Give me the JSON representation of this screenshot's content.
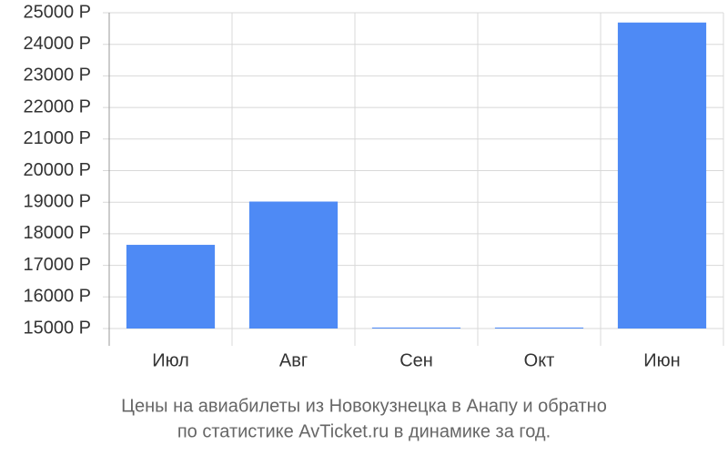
{
  "chart_data": {
    "type": "bar",
    "title": [
      "Цены на авиабилеты из Новокузнецка в Анапу и обратно",
      "по статистике AvTicket.ru в динамике за год."
    ],
    "categories": [
      "Июл",
      "Авг",
      "Сен",
      "Окт",
      "Июн"
    ],
    "values": [
      17650,
      19020,
      15030,
      15030,
      24690
    ],
    "color": "#4e8af5",
    "ylim": [
      15000,
      25000
    ],
    "yticks": [
      {
        "value": 15000,
        "label": "15000 Р"
      },
      {
        "value": 16000,
        "label": "16000 Р"
      },
      {
        "value": 17000,
        "label": "17000 Р"
      },
      {
        "value": 18000,
        "label": "18000 Р"
      },
      {
        "value": 19000,
        "label": "19000 Р"
      },
      {
        "value": 20000,
        "label": "20000 Р"
      },
      {
        "value": 21000,
        "label": "21000 Р"
      },
      {
        "value": 22000,
        "label": "22000 Р"
      },
      {
        "value": 23000,
        "label": "23000 Р"
      },
      {
        "value": 24000,
        "label": "24000 Р"
      },
      {
        "value": 25000,
        "label": "25000 Р"
      }
    ],
    "grid": true
  }
}
